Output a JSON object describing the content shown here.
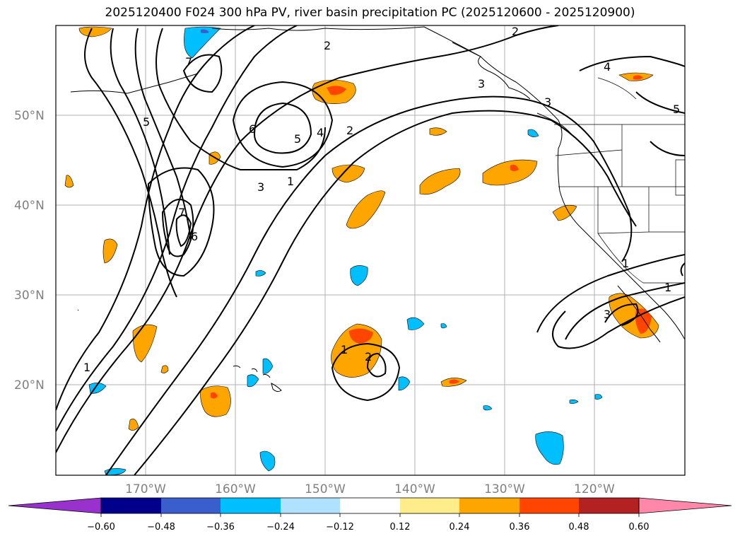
{
  "title": "2025120400 F024 300 hPa PV, river basin precipitation PC (2025120600 - 2025120900)",
  "lat_labels": [
    "50°N",
    "40°N",
    "30°N",
    "20°N"
  ],
  "lon_labels": [
    "170°W",
    "160°W",
    "150°W",
    "140°W",
    "130°W",
    "120°W"
  ],
  "colorbar": {
    "ticks": [
      "−0.60",
      "−0.48",
      "−0.36",
      "−0.24",
      "−0.12",
      "0.12",
      "0.24",
      "0.36",
      "0.48",
      "0.60"
    ],
    "colors": [
      "#9932cc",
      "#00008b",
      "#3a5fcd",
      "#00bfff",
      "#b0e2ff",
      "#ffffff",
      "#ffec8b",
      "#ffa500",
      "#ff4500",
      "#b22222",
      "#ff88aa"
    ]
  },
  "contour_labels": [
    "1",
    "2",
    "3",
    "4",
    "5",
    "6",
    "7",
    "5",
    "6",
    "7",
    "3",
    "1",
    "2",
    "2",
    "4",
    "5",
    "3",
    "1",
    "2",
    "3",
    "1",
    "1"
  ]
}
